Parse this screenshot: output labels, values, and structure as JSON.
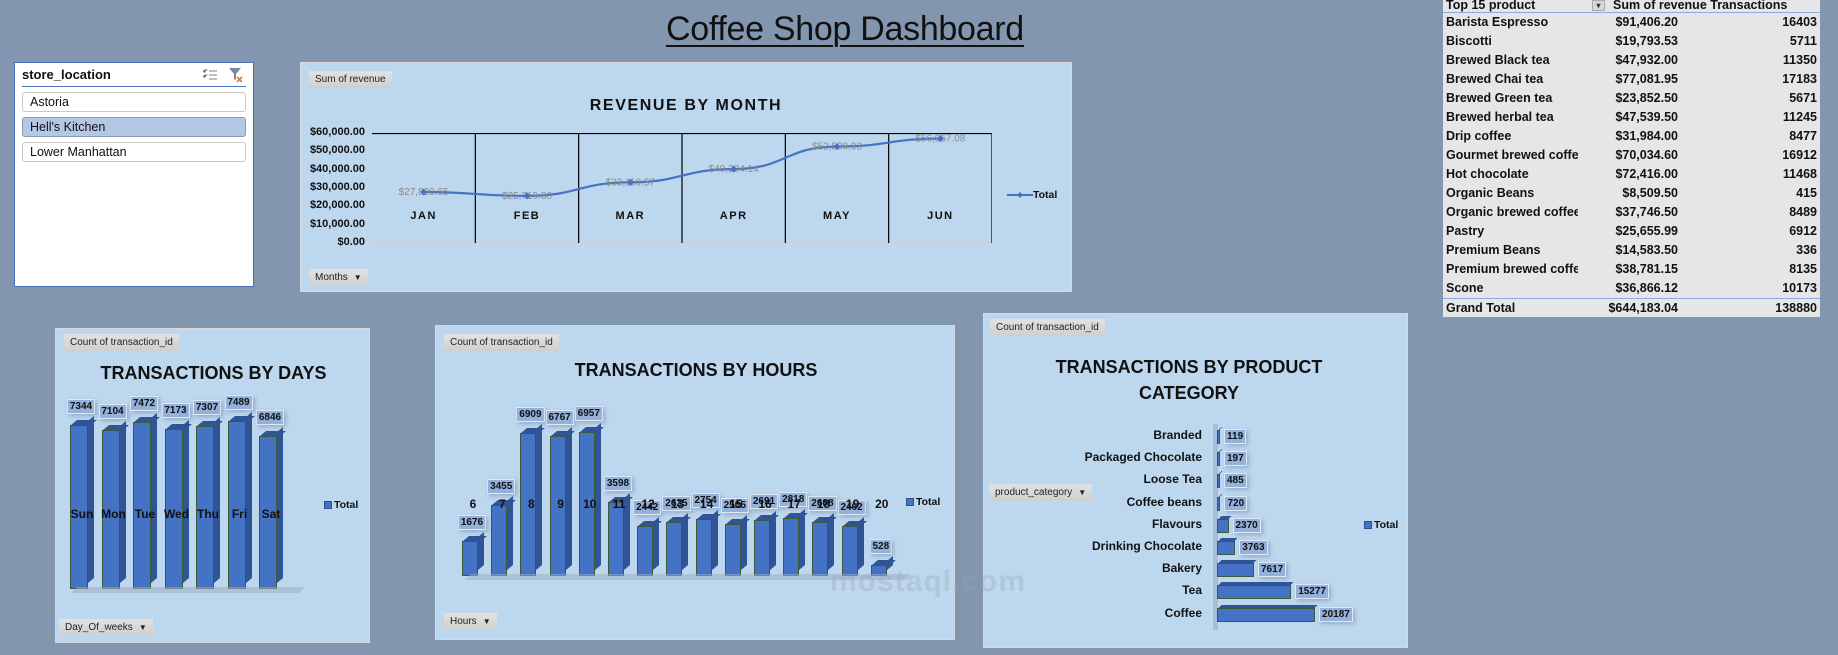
{
  "page": {
    "title": "Coffee Shop Dashboard",
    "background": "#8296b0",
    "panel_color": "#bdd7ee",
    "bar_color": "#4472c4",
    "watermark": "mostaql.com"
  },
  "slicer": {
    "title": "store_location",
    "multiselect_icon": "multi-select-icon",
    "clear_filter_icon": "clear-filter-icon",
    "items": [
      {
        "label": "Astoria",
        "selected": false
      },
      {
        "label": "Hell's Kitchen",
        "selected": true
      },
      {
        "label": "Lower Manhattan",
        "selected": false
      }
    ]
  },
  "revenue_chart": {
    "value_field": "Sum of revenue",
    "axis_field": "Months",
    "legend": "Total"
  },
  "days_chart": {
    "value_field": "Count of transaction_id",
    "axis_field": "Day_Of_weeks",
    "legend": "Total"
  },
  "hours_chart": {
    "value_field": "Count of transaction_id",
    "axis_field": "Hours",
    "legend": "Total"
  },
  "category_chart": {
    "value_field": "Count of transaction_id",
    "axis_field": "product_category",
    "legend": "Total"
  },
  "chart_data": [
    {
      "type": "line",
      "title": "REVENUE BY MONTH",
      "categories": [
        "JAN",
        "FEB",
        "MAR",
        "APR",
        "MAY",
        "JUN"
      ],
      "series": [
        {
          "name": "Total",
          "values": [
            27820.65,
            25719.8,
            33110.57,
            40304.14,
            52598.93,
            56957.08
          ]
        }
      ],
      "data_labels": [
        "$27,820.65",
        "$25,719.80",
        "$33,110.57",
        "$40,304.14",
        "$52,598.93",
        "$56,957.08"
      ],
      "yticks": [
        "$0.00",
        "$10,000.00",
        "$20,000.00",
        "$30,000.00",
        "$40,000.00",
        "$50,000.00",
        "$60,000.00"
      ],
      "ylim": [
        0,
        60000
      ],
      "xlabel": "",
      "ylabel": "",
      "legend_position": "right"
    },
    {
      "type": "bar",
      "title": "TRANSACTIONS BY DAYS",
      "categories": [
        "Sun",
        "Mon",
        "Tue",
        "Wed",
        "Thu",
        "Fri",
        "Sat"
      ],
      "series": [
        {
          "name": "Total",
          "values": [
            7344,
            7104,
            7472,
            7173,
            7307,
            7489,
            6846
          ]
        }
      ],
      "legend_position": "right"
    },
    {
      "type": "bar",
      "title": "TRANSACTIONS BY HOURS",
      "categories": [
        "6",
        "7",
        "8",
        "9",
        "10",
        "11",
        "12",
        "13",
        "14",
        "15",
        "16",
        "17",
        "18",
        "19",
        "20"
      ],
      "series": [
        {
          "name": "Total",
          "values": [
            1676,
            3455,
            6909,
            6767,
            6957,
            3598,
            2442,
            2625,
            2754,
            2505,
            2691,
            2818,
            2608,
            2402,
            528
          ]
        }
      ],
      "legend_position": "right"
    },
    {
      "type": "bar",
      "orientation": "horizontal",
      "title": "TRANSACTIONS BY PRODUCT CATEGORY",
      "categories": [
        "Branded",
        "Packaged Chocolate",
        "Loose Tea",
        "Coffee beans",
        "Flavours",
        "Drinking Chocolate",
        "Bakery",
        "Tea",
        "Coffee"
      ],
      "series": [
        {
          "name": "Total",
          "values": [
            119,
            197,
            485,
            720,
            2370,
            3763,
            7617,
            15277,
            20187
          ]
        }
      ],
      "legend_position": "right"
    },
    {
      "type": "table",
      "title": "Top 15 product",
      "columns": [
        "Top 15 product",
        "Sum of revenue",
        "Transactions"
      ],
      "rows": [
        [
          "Barista Espresso",
          "$91,406.20",
          "16403"
        ],
        [
          "Biscotti",
          "$19,793.53",
          "5711"
        ],
        [
          "Brewed Black tea",
          "$47,932.00",
          "11350"
        ],
        [
          "Brewed Chai tea",
          "$77,081.95",
          "17183"
        ],
        [
          "Brewed Green tea",
          "$23,852.50",
          "5671"
        ],
        [
          "Brewed herbal tea",
          "$47,539.50",
          "11245"
        ],
        [
          "Drip coffee",
          "$31,984.00",
          "8477"
        ],
        [
          "Gourmet brewed coffe",
          "$70,034.60",
          "16912"
        ],
        [
          "Hot chocolate",
          "$72,416.00",
          "11468"
        ],
        [
          "Organic Beans",
          "$8,509.50",
          "415"
        ],
        [
          "Organic brewed coffee",
          "$37,746.50",
          "8489"
        ],
        [
          "Pastry",
          "$25,655.99",
          "6912"
        ],
        [
          "Premium Beans",
          "$14,583.50",
          "336"
        ],
        [
          "Premium brewed coffe",
          "$38,781.15",
          "8135"
        ],
        [
          "Scone",
          "$36,866.12",
          "10173"
        ]
      ],
      "total": [
        "Grand Total",
        "$644,183.04",
        "138880"
      ]
    }
  ],
  "pivot": {
    "header_product": "Top 15 product",
    "header_values": "Sum of revenue Transactions",
    "sort_icon": "sort-filter-icon"
  }
}
